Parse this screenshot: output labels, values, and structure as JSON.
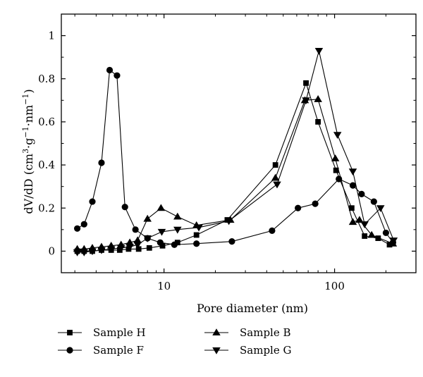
{
  "chart_data": {
    "type": "line",
    "xlabel": "Pore diameter (nm)",
    "ylabel_parts": {
      "main": "dV/dD (cm",
      "sup1": "3",
      "dot1": "·g",
      "sup2": "−1",
      "dot2": "·nm",
      "sup3": "−1",
      "end": ")"
    },
    "x_scale": "log",
    "xlim": [
      2.5,
      300
    ],
    "ylim": [
      -0.1,
      1.1
    ],
    "x_ticks": [
      10,
      100
    ],
    "x_tick_labels": [
      "10",
      "100"
    ],
    "y_ticks": [
      0,
      0.2,
      0.4,
      0.6,
      0.8,
      1
    ],
    "y_tick_labels": [
      "0",
      "0.2",
      "0.4",
      "0.6",
      "0.8",
      "1"
    ],
    "grid": false,
    "legend_position": "bottom",
    "series": [
      {
        "name": "Sample H",
        "marker": "square",
        "points": [
          [
            3.1,
            0.0
          ],
          [
            3.4,
            0.0
          ],
          [
            3.8,
            0.0
          ],
          [
            4.3,
            0.005
          ],
          [
            4.9,
            0.005
          ],
          [
            5.5,
            0.005
          ],
          [
            6.2,
            0.01
          ],
          [
            7.1,
            0.01
          ],
          [
            8.2,
            0.015
          ],
          [
            9.8,
            0.025
          ],
          [
            12.0,
            0.04
          ],
          [
            15.5,
            0.075
          ],
          [
            23.5,
            0.145
          ],
          [
            45.0,
            0.4
          ],
          [
            68.0,
            0.78
          ],
          [
            80.0,
            0.6
          ],
          [
            102.0,
            0.375
          ],
          [
            126.0,
            0.2
          ],
          [
            150.0,
            0.07
          ],
          [
            180.0,
            0.06
          ],
          [
            210.0,
            0.03
          ]
        ]
      },
      {
        "name": "Sample F",
        "marker": "circle",
        "points": [
          [
            3.1,
            0.105
          ],
          [
            3.4,
            0.125
          ],
          [
            3.8,
            0.23
          ],
          [
            4.3,
            0.41
          ],
          [
            4.8,
            0.84
          ],
          [
            5.3,
            0.815
          ],
          [
            5.9,
            0.205
          ],
          [
            6.8,
            0.1
          ],
          [
            8.0,
            0.06
          ],
          [
            9.5,
            0.04
          ],
          [
            11.5,
            0.03
          ],
          [
            15.5,
            0.035
          ],
          [
            25.0,
            0.045
          ],
          [
            43.0,
            0.095
          ],
          [
            61.0,
            0.2
          ],
          [
            77.0,
            0.22
          ],
          [
            106.0,
            0.335
          ],
          [
            128.0,
            0.305
          ],
          [
            144.0,
            0.265
          ],
          [
            170.0,
            0.23
          ],
          [
            200.0,
            0.085
          ],
          [
            220.0,
            0.04
          ]
        ]
      },
      {
        "name": "Sample B",
        "marker": "triangle-up",
        "points": [
          [
            3.1,
            0.01
          ],
          [
            3.4,
            0.01
          ],
          [
            3.8,
            0.015
          ],
          [
            4.3,
            0.02
          ],
          [
            4.9,
            0.025
          ],
          [
            5.6,
            0.03
          ],
          [
            6.3,
            0.04
          ],
          [
            7.0,
            0.05
          ],
          [
            8.0,
            0.15
          ],
          [
            9.6,
            0.2
          ],
          [
            12.0,
            0.16
          ],
          [
            15.5,
            0.12
          ],
          [
            24.5,
            0.145
          ],
          [
            45.0,
            0.34
          ],
          [
            67.0,
            0.7
          ],
          [
            80.0,
            0.705
          ],
          [
            101.0,
            0.43
          ],
          [
            128.0,
            0.135
          ],
          [
            140.0,
            0.145
          ],
          [
            165.0,
            0.075
          ],
          [
            220.0,
            0.035
          ]
        ]
      },
      {
        "name": "Sample G",
        "marker": "triangle-down",
        "points": [
          [
            3.1,
            -0.005
          ],
          [
            3.4,
            -0.005
          ],
          [
            3.8,
            0.0
          ],
          [
            4.3,
            0.005
          ],
          [
            4.9,
            0.01
          ],
          [
            5.6,
            0.015
          ],
          [
            6.3,
            0.02
          ],
          [
            7.0,
            0.03
          ],
          [
            8.0,
            0.06
          ],
          [
            9.7,
            0.09
          ],
          [
            12.0,
            0.1
          ],
          [
            16.0,
            0.11
          ],
          [
            24.0,
            0.14
          ],
          [
            46.0,
            0.31
          ],
          [
            68.0,
            0.7
          ],
          [
            81.0,
            0.93
          ],
          [
            104.0,
            0.54
          ],
          [
            128.0,
            0.37
          ],
          [
            150.0,
            0.125
          ],
          [
            186.0,
            0.2
          ],
          [
            222.0,
            0.05
          ]
        ]
      }
    ]
  }
}
